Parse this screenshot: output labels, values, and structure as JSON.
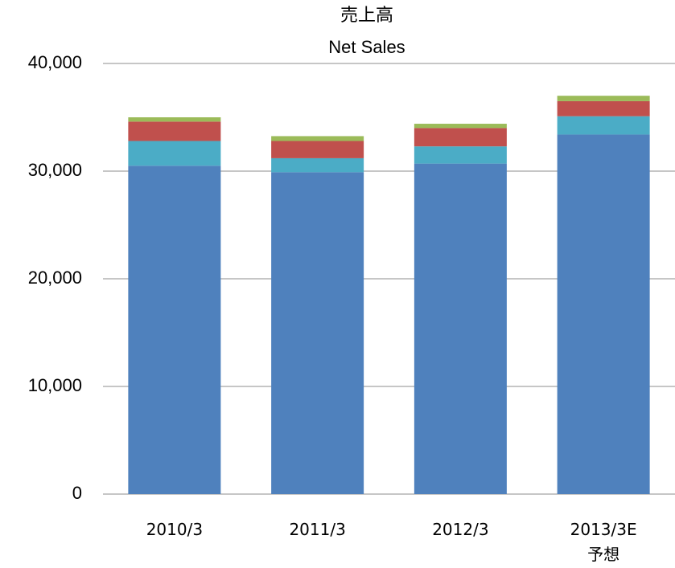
{
  "chart_data": {
    "type": "stacked_bar",
    "title": "売上高",
    "subtitle": "Net Sales",
    "categories": [
      "2010/3",
      "2011/3",
      "2012/3",
      "2013/3E\n予想"
    ],
    "series": [
      {
        "color": "#4f81bd",
        "values": [
          30500,
          29900,
          30700,
          33400
        ]
      },
      {
        "color": "#4bacc6",
        "values": [
          2300,
          1300,
          1600,
          1700
        ]
      },
      {
        "color": "#c0504d",
        "values": [
          1800,
          1600,
          1700,
          1400
        ]
      },
      {
        "color": "#9bbb59",
        "values": [
          400,
          450,
          400,
          500
        ]
      }
    ],
    "ylim": [
      0,
      40000
    ],
    "yticks": [
      0,
      {
        "value": 10000,
        "label": "10,000"
      },
      {
        "value": 20000,
        "label": "20,000"
      },
      {
        "value": 30000,
        "label": "30,000"
      },
      {
        "value": 40000,
        "label": "40,000"
      }
    ],
    "grid": true
  }
}
